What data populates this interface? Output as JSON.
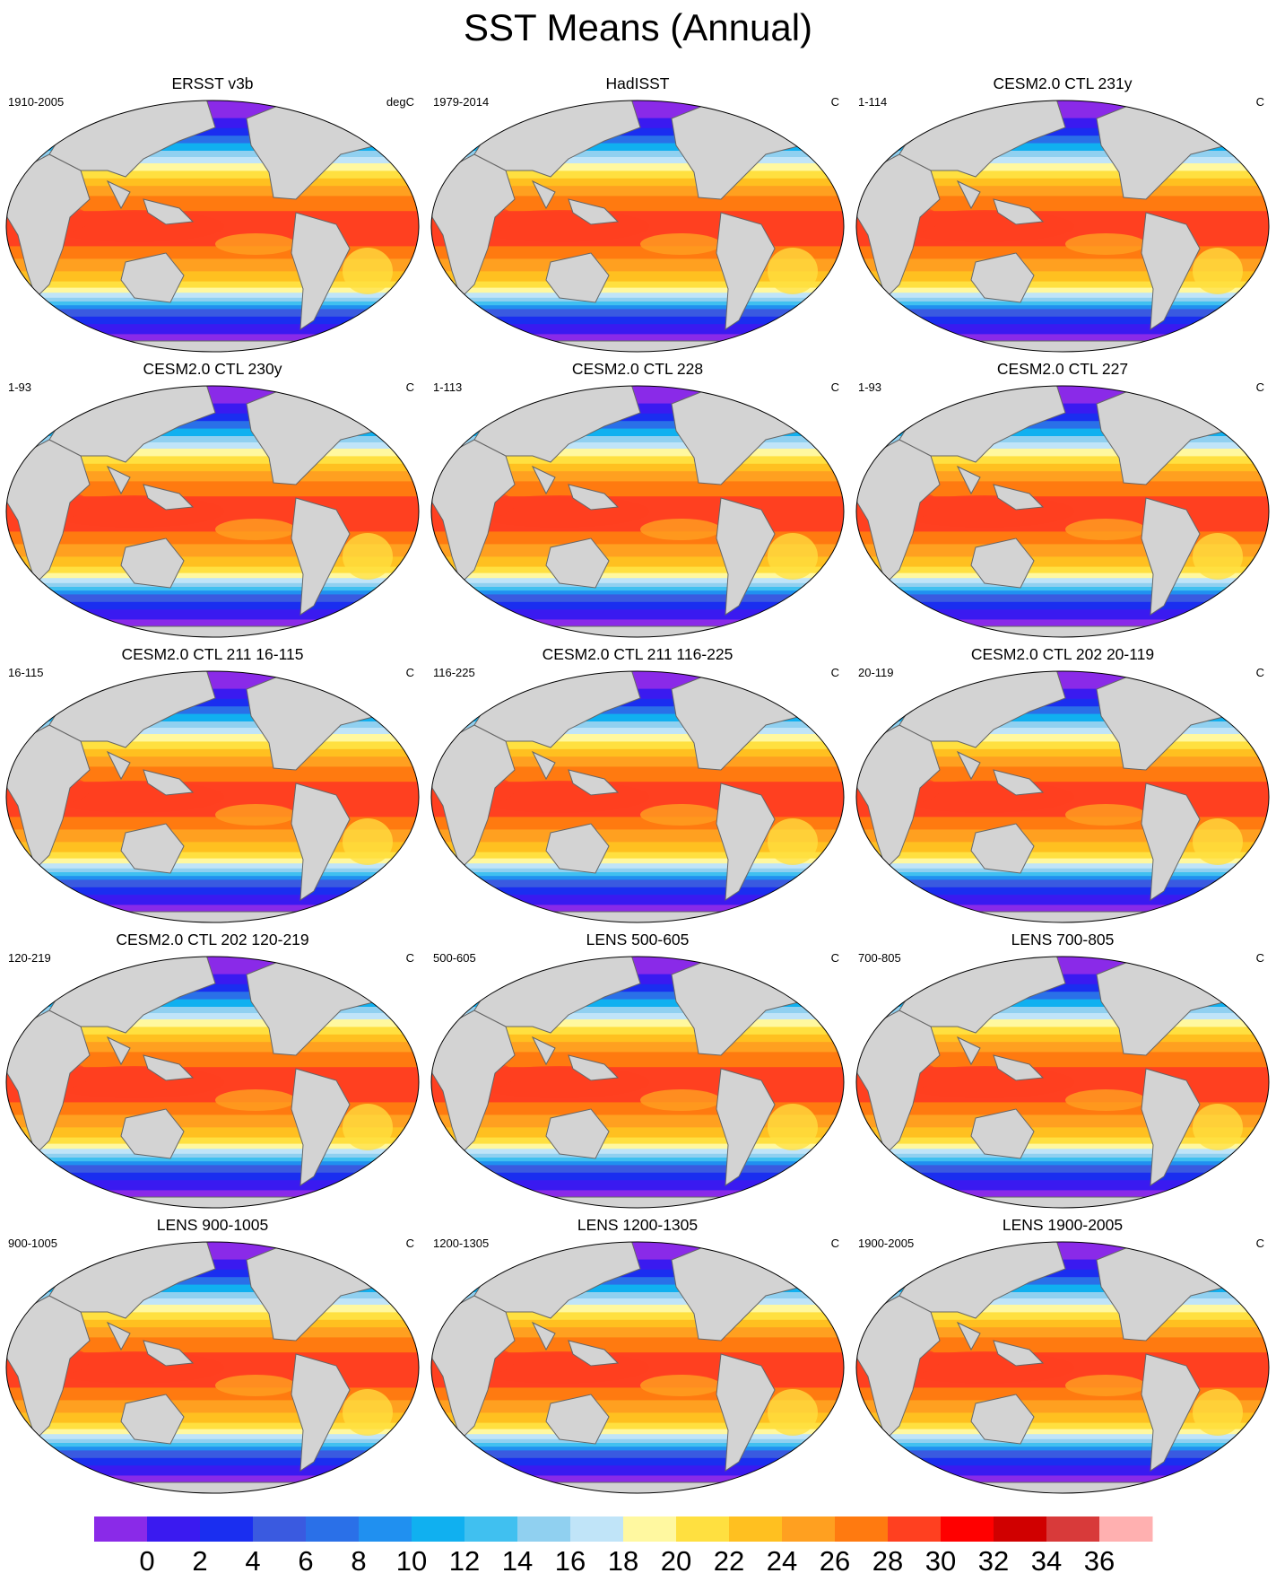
{
  "title": "SST Means (Annual)",
  "panels": [
    {
      "title": "ERSST v3b",
      "period": "1910-2005",
      "units": "degC"
    },
    {
      "title": "HadISST",
      "period": "1979-2014",
      "units": "C"
    },
    {
      "title": "CESM2.0 CTL 231y",
      "period": "1-114",
      "units": "C"
    },
    {
      "title": "CESM2.0 CTL 230y",
      "period": "1-93",
      "units": "C"
    },
    {
      "title": "CESM2.0 CTL 228",
      "period": "1-113",
      "units": "C"
    },
    {
      "title": "CESM2.0 CTL 227",
      "period": "1-93",
      "units": "C"
    },
    {
      "title": "CESM2.0 CTL 211 16-115",
      "period": "16-115",
      "units": "C"
    },
    {
      "title": "CESM2.0 CTL 211 116-225",
      "period": "116-225",
      "units": "C"
    },
    {
      "title": "CESM2.0 CTL 202 20-119",
      "period": "20-119",
      "units": "C"
    },
    {
      "title": "CESM2.0 CTL 202 120-219",
      "period": "120-219",
      "units": "C"
    },
    {
      "title": "LENS 500-605",
      "period": "500-605",
      "units": "C"
    },
    {
      "title": "LENS 700-805",
      "period": "700-805",
      "units": "C"
    },
    {
      "title": "LENS 900-1005",
      "period": "900-1005",
      "units": "C"
    },
    {
      "title": "LENS 1200-1305",
      "period": "1200-1305",
      "units": "C"
    },
    {
      "title": "LENS 1900-2005",
      "period": "1900-2005",
      "units": "C"
    }
  ],
  "colorbar": {
    "levels": [
      "0",
      "2",
      "4",
      "6",
      "8",
      "10",
      "12",
      "14",
      "16",
      "18",
      "20",
      "22",
      "24",
      "26",
      "28",
      "30",
      "32",
      "34",
      "36"
    ],
    "colors": [
      "#8a2ae8",
      "#3a1af0",
      "#1a2ef0",
      "#3a5ae0",
      "#2a70e8",
      "#2090f0",
      "#10b0f0",
      "#40c0f0",
      "#90d0f0",
      "#c0e4f8",
      "#fff8a0",
      "#ffe040",
      "#ffc020",
      "#ffa020",
      "#ff7a10",
      "#ff4020",
      "#ff0000",
      "#d00000",
      "#d83a3a",
      "#ffb0b0"
    ]
  },
  "colors": {
    "land": "#d3d3d3",
    "coast": "#666666",
    "missing": "#ffffff"
  }
}
